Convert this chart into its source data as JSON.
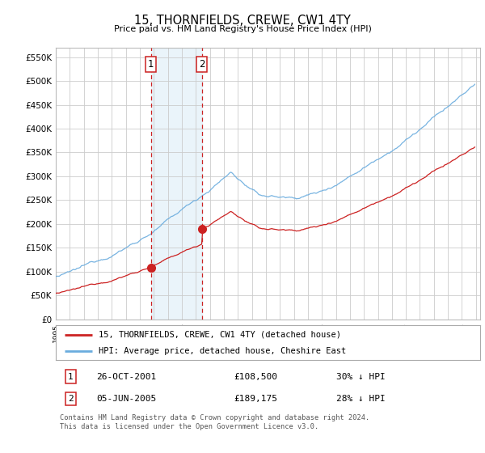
{
  "title": "15, THORNFIELDS, CREWE, CW1 4TY",
  "subtitle": "Price paid vs. HM Land Registry's House Price Index (HPI)",
  "ylim": [
    0,
    570000
  ],
  "yticks": [
    0,
    50000,
    100000,
    150000,
    200000,
    250000,
    300000,
    350000,
    400000,
    450000,
    500000,
    550000
  ],
  "ytick_labels": [
    "£0",
    "£50K",
    "£100K",
    "£150K",
    "£200K",
    "£250K",
    "£300K",
    "£350K",
    "£400K",
    "£450K",
    "£500K",
    "£550K"
  ],
  "hpi_color": "#6aacde",
  "price_color": "#cc2222",
  "vline_color": "#cc2222",
  "purchase1_year": 2001.79,
  "purchase1_price": 108500,
  "purchase2_year": 2005.42,
  "purchase2_price": 189175,
  "legend_label1": "15, THORNFIELDS, CREWE, CW1 4TY (detached house)",
  "legend_label2": "HPI: Average price, detached house, Cheshire East",
  "table_row1": [
    "1",
    "26-OCT-2001",
    "£108,500",
    "30% ↓ HPI"
  ],
  "table_row2": [
    "2",
    "05-JUN-2005",
    "£189,175",
    "28% ↓ HPI"
  ],
  "footer": "Contains HM Land Registry data © Crown copyright and database right 2024.\nThis data is licensed under the Open Government Licence v3.0.",
  "bg_color": "#ffffff",
  "grid_color": "#cccccc",
  "shading_color": "#ddeef8",
  "xstart": 1995,
  "xend": 2025
}
